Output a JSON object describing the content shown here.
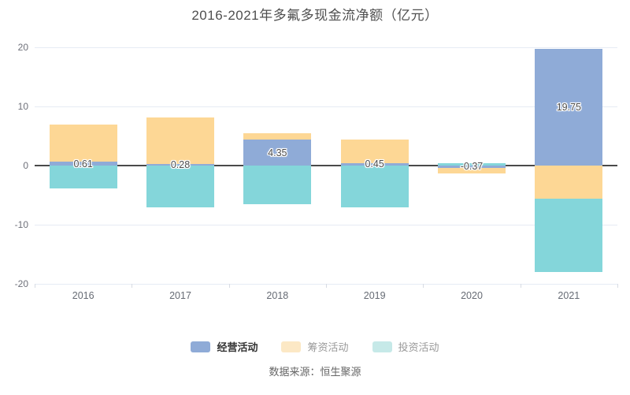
{
  "title": "2016-2021年多氟多现金流净额（亿元）",
  "footer": {
    "source": "数据来源：恒生聚源"
  },
  "legend": {
    "items": [
      {
        "label": "经营活动",
        "swatch": "#8fabd7",
        "active": true
      },
      {
        "label": "筹资活动",
        "swatch": "#fce8c5",
        "active": false
      },
      {
        "label": "投资活动",
        "swatch": "#c6e9e8",
        "active": false
      }
    ]
  },
  "colors": {
    "operating": "#8fabd7",
    "financing": "#fdd795",
    "investing": "#84d6da",
    "zero_line": "#4a4a4a",
    "grid_line": "#e6ebf4",
    "axis_text": "#6e7079",
    "bar_label": "#4d4d4d"
  },
  "chart_data": {
    "type": "bar",
    "stacked": true,
    "grid": true,
    "legend_position": "bottom",
    "categories": [
      "2016",
      "2017",
      "2018",
      "2019",
      "2020",
      "2021"
    ],
    "series": [
      {
        "name": "经营活动",
        "key": "operating",
        "values": [
          0.61,
          0.28,
          4.35,
          0.45,
          -0.37,
          19.75
        ]
      },
      {
        "name": "筹资活动",
        "key": "financing",
        "values": [
          6.3,
          7.8,
          1.1,
          3.9,
          -1.0,
          -5.6
        ]
      },
      {
        "name": "投资活动",
        "key": "investing",
        "values": [
          -3.9,
          -7.1,
          -6.5,
          -7.0,
          0.4,
          -12.4
        ]
      }
    ],
    "data_labels": [
      "0.61",
      "0.28",
      "4.35",
      "0.45",
      "-0.37",
      "19.75"
    ],
    "data_label_series": "经营活动",
    "yticks": [
      20,
      10,
      0,
      -10,
      -20
    ],
    "ylim": [
      -20,
      20
    ],
    "xlabel": "",
    "ylabel": ""
  }
}
